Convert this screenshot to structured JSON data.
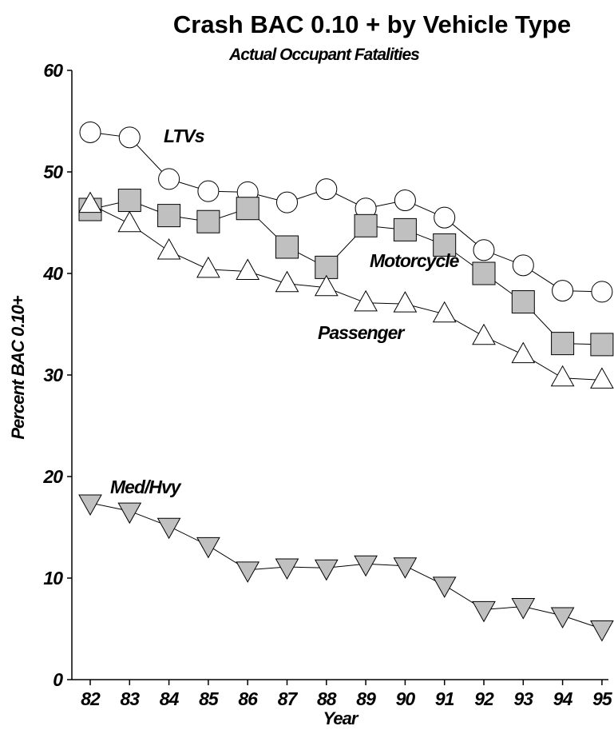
{
  "chart_data": {
    "type": "line",
    "title": "Crash BAC 0.10 + by Vehicle Type",
    "subtitle": "Actual Occupant Fatalities",
    "xlabel": "Year",
    "ylabel": "Percent BAC 0.10+",
    "categories": [
      "82",
      "83",
      "84",
      "85",
      "86",
      "87",
      "88",
      "89",
      "90",
      "91",
      "92",
      "93",
      "94",
      "95"
    ],
    "ylim": [
      0,
      60
    ],
    "yticks": [
      "0",
      "10",
      "20",
      "30",
      "40",
      "50",
      "60"
    ],
    "grid": false,
    "series": [
      {
        "name": "LTVs",
        "marker": "circle",
        "fill": "#ffffff",
        "values": [
          53.9,
          53.4,
          49.3,
          48.1,
          48.0,
          47.0,
          48.3,
          46.4,
          47.2,
          45.5,
          42.3,
          40.8,
          38.3,
          38.2
        ]
      },
      {
        "name": "Motorcycle",
        "marker": "square",
        "fill": "#c0c0c0",
        "values": [
          46.3,
          47.2,
          45.7,
          45.1,
          46.4,
          42.6,
          40.6,
          44.7,
          44.3,
          42.8,
          40.0,
          37.2,
          33.1,
          33.0
        ]
      },
      {
        "name": "Passenger",
        "marker": "triangle-up",
        "fill": "#ffffff",
        "values": [
          46.8,
          44.9,
          42.2,
          40.4,
          40.2,
          39.0,
          38.6,
          37.1,
          37.0,
          36.0,
          33.8,
          32.0,
          29.7,
          29.5
        ]
      },
      {
        "name": "Med/Hvy",
        "marker": "triangle-down",
        "fill": "#c0c0c0",
        "values": [
          17.4,
          16.6,
          15.1,
          13.2,
          10.8,
          11.1,
          11.0,
          11.4,
          11.2,
          9.3,
          6.9,
          7.2,
          6.3,
          5.0
        ]
      }
    ]
  }
}
